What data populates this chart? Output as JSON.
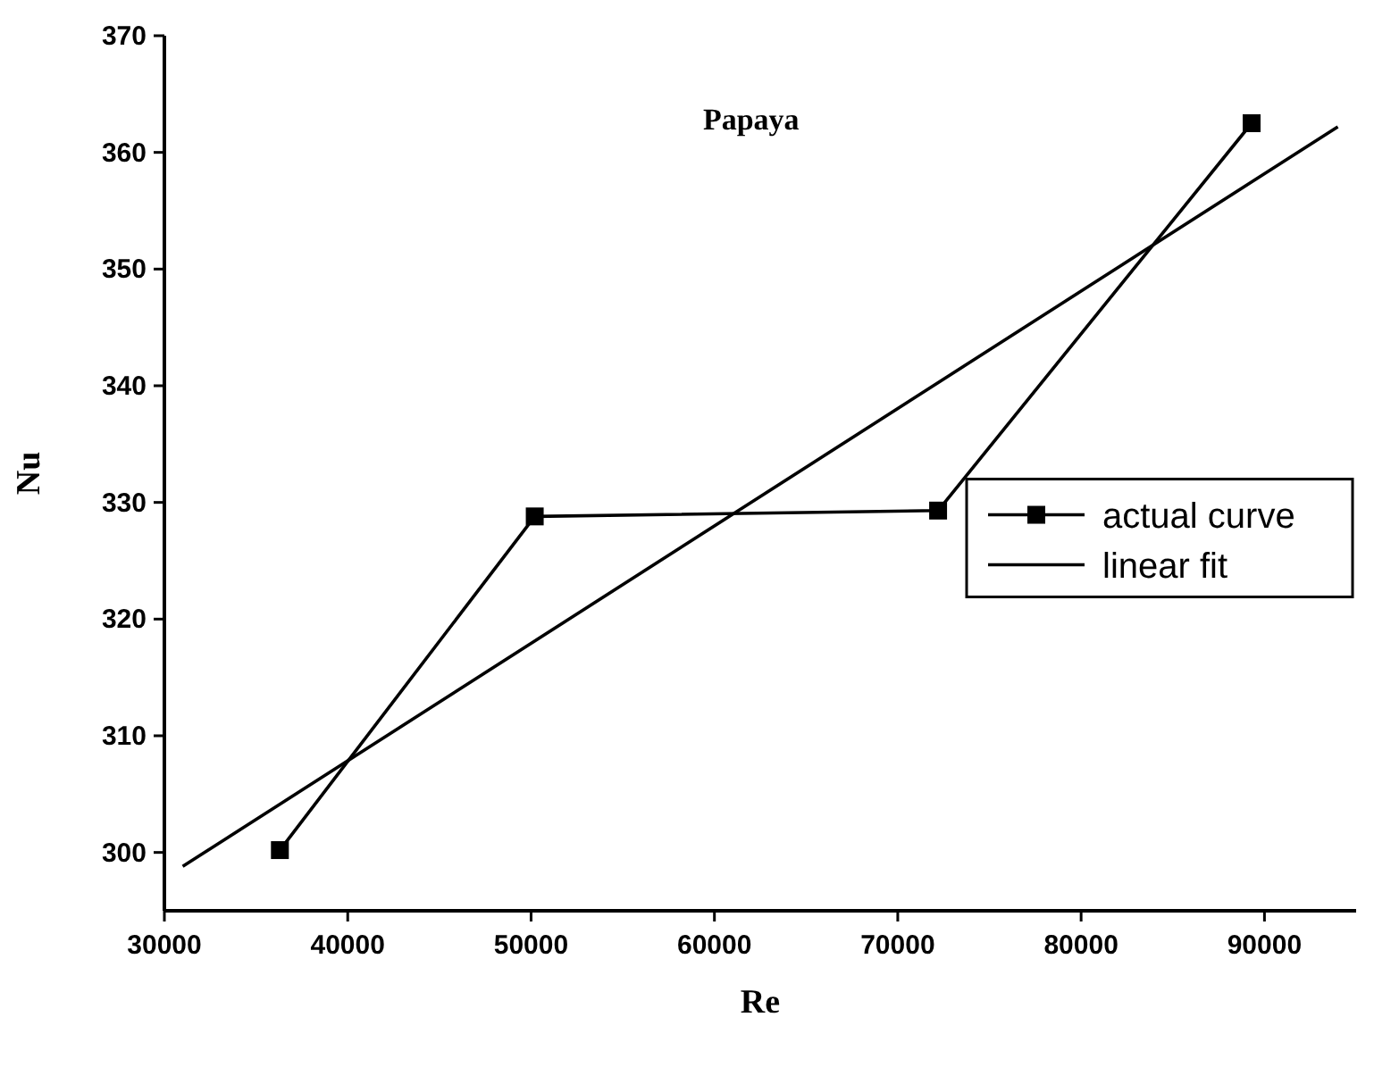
{
  "chart_data": {
    "type": "line",
    "annotations": [
      "Papaya"
    ],
    "xlabel": "Re",
    "ylabel": "Nu",
    "xlim": [
      30000,
      95000
    ],
    "ylim": [
      295,
      370
    ],
    "xticks": [
      30000,
      40000,
      50000,
      60000,
      70000,
      80000,
      90000
    ],
    "yticks": [
      300,
      310,
      320,
      330,
      340,
      350,
      360,
      370
    ],
    "grid": false,
    "legend": "right",
    "series": [
      {
        "name": "actual curve",
        "color": "#000000",
        "marker": "square",
        "x": [
          36300,
          50200,
          72200,
          89300
        ],
        "values": [
          300.2,
          328.8,
          329.3,
          362.5
        ]
      },
      {
        "name": "linear fit",
        "color": "#000000",
        "marker": "none",
        "x": [
          31000,
          94000
        ],
        "values": [
          298.8,
          362.2
        ]
      }
    ]
  }
}
